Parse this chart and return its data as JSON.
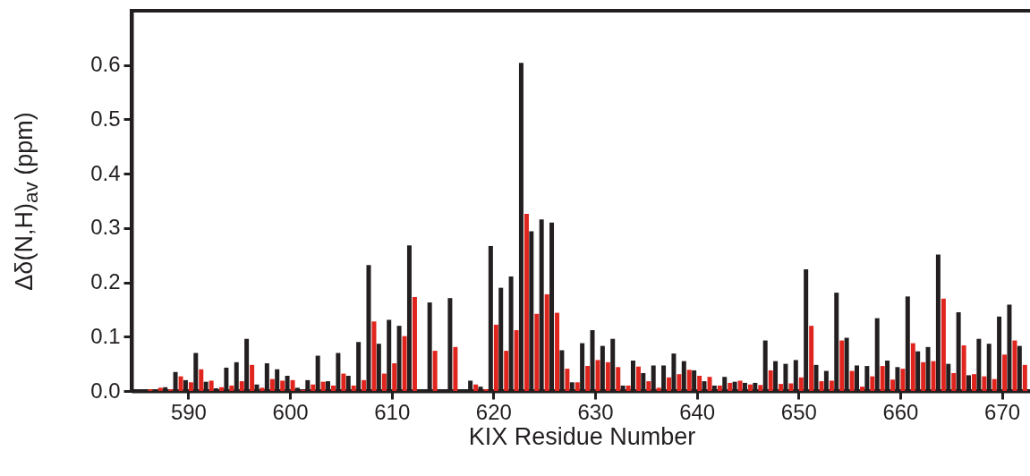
{
  "chart_data": {
    "type": "bar",
    "xlabel": "KIX Residue Number",
    "ylabel": "Δδ(N,H)$_{av}$ (ppm)",
    "x": [
      586,
      587,
      588,
      589,
      590,
      591,
      592,
      593,
      594,
      595,
      596,
      597,
      598,
      599,
      600,
      601,
      602,
      603,
      604,
      605,
      606,
      607,
      608,
      609,
      610,
      611,
      612,
      613,
      614,
      615,
      616,
      617,
      618,
      619,
      620,
      621,
      622,
      623,
      624,
      625,
      626,
      627,
      628,
      629,
      630,
      631,
      632,
      633,
      634,
      635,
      636,
      637,
      638,
      639,
      640,
      641,
      642,
      643,
      644,
      645,
      646,
      647,
      648,
      649,
      650,
      651,
      652,
      653,
      654,
      655,
      656,
      657,
      658,
      659,
      660,
      661,
      662,
      663,
      664,
      665,
      666,
      667,
      668,
      669,
      670,
      671,
      672
    ],
    "series": [
      {
        "color": "#231f20",
        "values": [
          null,
          null,
          0.007,
          0.035,
          0.02,
          0.07,
          0.017,
          0.005,
          0.043,
          0.053,
          0.096,
          0.012,
          0.051,
          0.04,
          0.028,
          0.006,
          0.02,
          0.065,
          0.018,
          0.07,
          0.028,
          0.09,
          0.232,
          0.087,
          0.131,
          0.12,
          0.268,
          null,
          0.163,
          null,
          0.171,
          null,
          0.019,
          0.008,
          0.267,
          0.19,
          0.211,
          0.604,
          0.294,
          0.316,
          0.31,
          0.075,
          0.016,
          0.088,
          0.112,
          0.083,
          0.096,
          0.01,
          0.056,
          0.033,
          0.047,
          0.047,
          0.069,
          0.055,
          0.038,
          0.018,
          0.01,
          0.026,
          0.017,
          0.015,
          0.015,
          0.093,
          0.055,
          0.05,
          0.057,
          0.224,
          0.048,
          0.037,
          0.181,
          0.098,
          0.047,
          0.046,
          0.134,
          0.056,
          0.044,
          0.174,
          0.073,
          0.081,
          0.251,
          0.05,
          0.145,
          0.029,
          0.096,
          0.087,
          0.137,
          0.159,
          0.083
        ]
      },
      {
        "color": "#e0251f",
        "values": [
          0.003,
          0.006,
          0.003,
          0.027,
          0.016,
          0.04,
          0.019,
          0.007,
          0.01,
          0.018,
          0.048,
          0.006,
          0.022,
          0.019,
          0.02,
          0.002,
          0.012,
          0.017,
          0.01,
          0.032,
          0.01,
          0.02,
          0.128,
          0.032,
          0.051,
          0.101,
          0.173,
          null,
          0.074,
          null,
          0.081,
          null,
          0.012,
          0.003,
          0.122,
          0.074,
          0.112,
          0.326,
          0.142,
          0.178,
          0.144,
          0.041,
          0.016,
          0.046,
          0.057,
          0.053,
          0.044,
          0.01,
          0.045,
          0.018,
          0.006,
          0.025,
          0.031,
          0.039,
          0.028,
          0.026,
          0.01,
          0.015,
          0.019,
          0.012,
          0.011,
          0.038,
          0.013,
          0.014,
          0.025,
          0.12,
          0.018,
          0.019,
          0.093,
          0.037,
          0.008,
          0.027,
          0.046,
          0.021,
          0.041,
          0.088,
          0.053,
          0.055,
          0.17,
          0.033,
          0.084,
          0.031,
          0.027,
          0.022,
          0.067,
          0.093,
          0.048
        ]
      }
    ],
    "xlim": [
      584.86,
      672.5
    ],
    "xticks": [
      590,
      600,
      610,
      620,
      630,
      640,
      650,
      660,
      670
    ],
    "ylim": [
      0,
      0.7
    ],
    "yticks": [
      {
        "value": 0,
        "label": "0.0"
      },
      {
        "value": 0.1,
        "label": "0.1"
      },
      {
        "value": 0.2,
        "label": "0.2"
      },
      {
        "value": 0.3,
        "label": "0.3"
      },
      {
        "value": 0.4,
        "label": "0.4"
      },
      {
        "value": 0.5,
        "label": "0.5"
      },
      {
        "value": 0.6,
        "label": "0.6"
      }
    ],
    "grid": false
  }
}
